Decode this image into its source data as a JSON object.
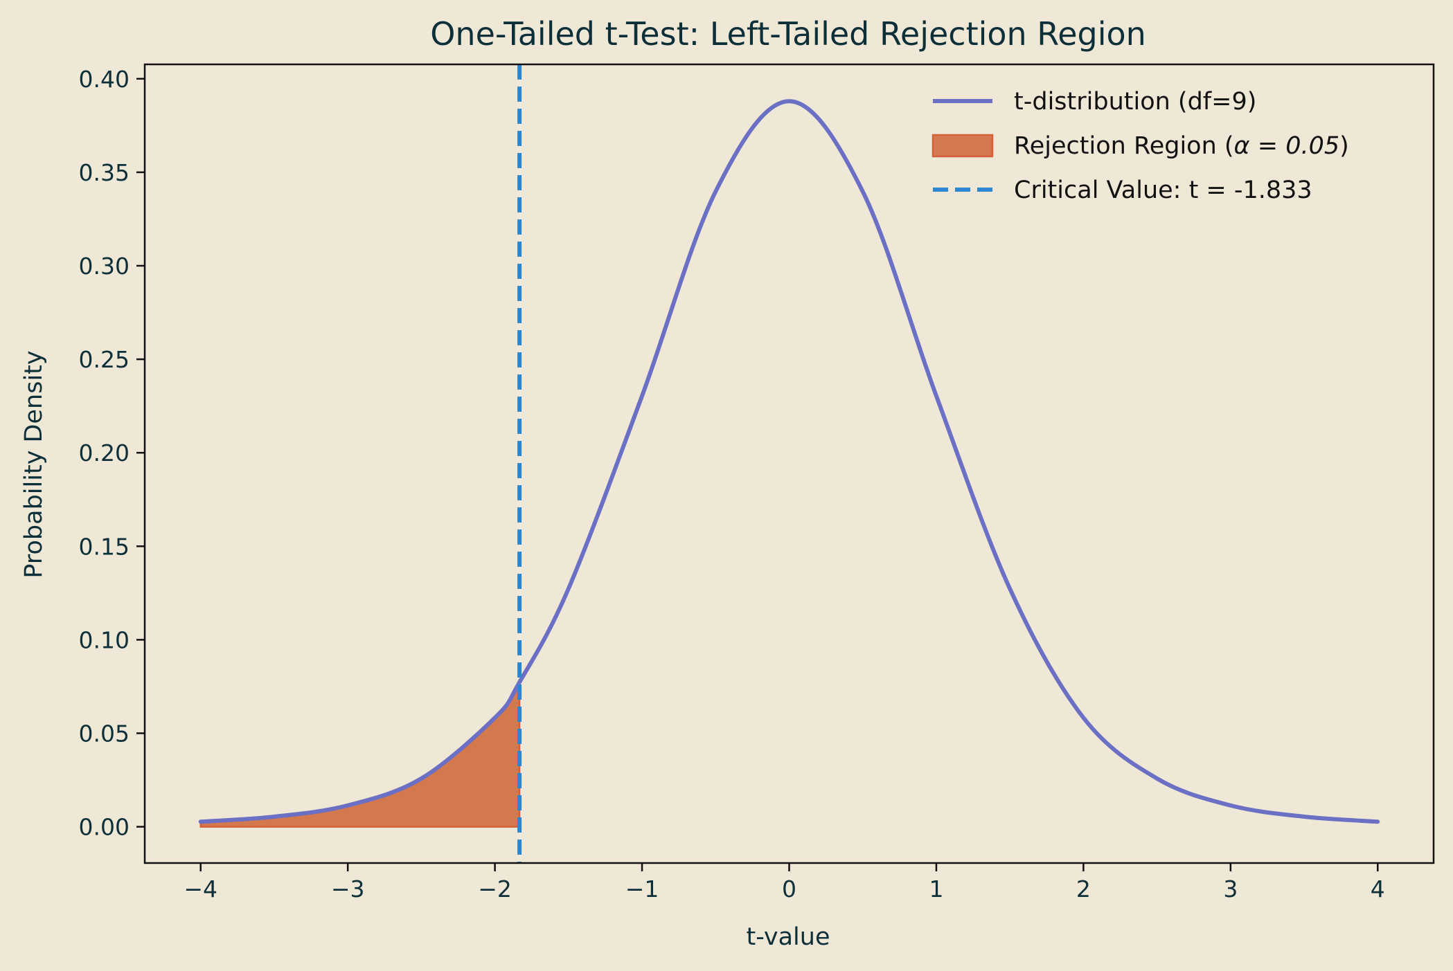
{
  "chart_data": {
    "type": "line",
    "title": "One-Tailed t-Test: Left-Tailed Rejection Region",
    "xlabel": "t-value",
    "ylabel": "Probability Density",
    "xlim": [
      -4.38,
      4.38
    ],
    "ylim": [
      -0.0194,
      0.4077
    ],
    "xticks": [
      -4,
      -3,
      -2,
      -1,
      0,
      1,
      2,
      3,
      4
    ],
    "xtick_labels": [
      "−4",
      "−3",
      "−2",
      "−1",
      "0",
      "1",
      "2",
      "3",
      "4"
    ],
    "yticks": [
      0.0,
      0.05,
      0.1,
      0.15,
      0.2,
      0.25,
      0.3,
      0.35,
      0.4
    ],
    "ytick_labels": [
      "0.00",
      "0.05",
      "0.10",
      "0.15",
      "0.20",
      "0.25",
      "0.30",
      "0.35",
      "0.40"
    ],
    "grid": false,
    "legend_position": "top-right",
    "series": [
      {
        "name": "t-distribution (df=9)",
        "kind": "line",
        "color": "#6b70c4",
        "x": [
          -4.0,
          -3.5,
          -3.0,
          -2.5,
          -2.0,
          -1.833,
          -1.5,
          -1.0,
          -0.5,
          0.0,
          0.5,
          1.0,
          1.5,
          2.0,
          2.5,
          3.0,
          3.5,
          4.0
        ],
        "y": [
          0.0027,
          0.0054,
          0.0114,
          0.0258,
          0.0583,
          0.0773,
          0.1273,
          0.2304,
          0.3397,
          0.388,
          0.3397,
          0.2304,
          0.1273,
          0.0583,
          0.0258,
          0.0114,
          0.0054,
          0.0027
        ]
      },
      {
        "name": "Rejection Region (α = 0.05)",
        "legend_prefix": "Rejection Region (",
        "legend_symbol": "α = 0.05",
        "legend_suffix": ")",
        "kind": "area",
        "color": "#d4784e",
        "edge_color": "#d4603a",
        "x_from": -4.0,
        "x_to": -1.833
      },
      {
        "name": "Critical Value: t = -1.833",
        "kind": "vline",
        "color": "#2b87d1",
        "x": -1.833
      }
    ]
  }
}
